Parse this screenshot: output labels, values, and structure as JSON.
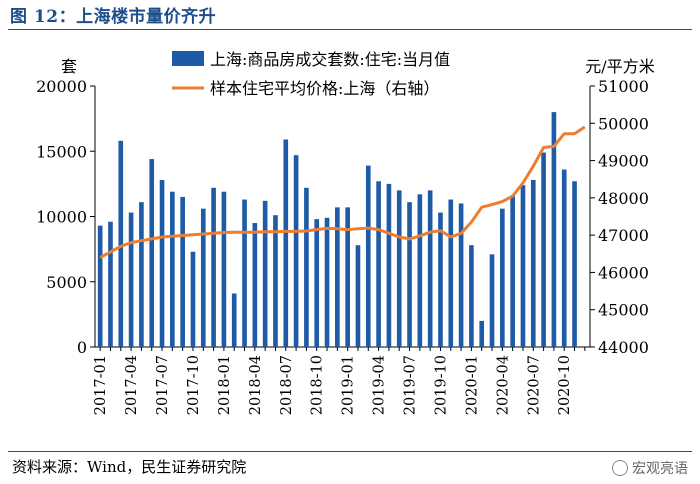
{
  "figure": {
    "title": "图 12：上海楼市量价齐升",
    "source": "资料来源：Wind，民生证券研究院",
    "watermark": "宏观亮语"
  },
  "chart_data": {
    "type": "bar+line",
    "left_unit": "套",
    "right_unit": "元/平方米",
    "left_ylim": [
      0,
      20000
    ],
    "left_ticks": [
      0,
      5000,
      10000,
      15000,
      20000
    ],
    "right_ylim": [
      44000,
      51000
    ],
    "right_ticks": [
      44000,
      45000,
      46000,
      47000,
      48000,
      49000,
      50000,
      51000
    ],
    "x_tick_labels": [
      "2017-01",
      "2017-04",
      "2017-07",
      "2017-10",
      "2018-01",
      "2018-04",
      "2018-07",
      "2018-10",
      "2019-01",
      "2019-04",
      "2019-07",
      "2019-10",
      "2020-01",
      "2020-04",
      "2020-07",
      "2020-10"
    ],
    "x": [
      "2017-01",
      "2017-02",
      "2017-03",
      "2017-04",
      "2017-05",
      "2017-06",
      "2017-07",
      "2017-08",
      "2017-09",
      "2017-10",
      "2017-11",
      "2017-12",
      "2018-01",
      "2018-02",
      "2018-03",
      "2018-04",
      "2018-05",
      "2018-06",
      "2018-07",
      "2018-08",
      "2018-09",
      "2018-10",
      "2018-11",
      "2018-12",
      "2019-01",
      "2019-02",
      "2019-03",
      "2019-04",
      "2019-05",
      "2019-06",
      "2019-07",
      "2019-08",
      "2019-09",
      "2019-10",
      "2019-11",
      "2019-12",
      "2020-01",
      "2020-02",
      "2020-03",
      "2020-04",
      "2020-05",
      "2020-06",
      "2020-07",
      "2020-08",
      "2020-09",
      "2020-10",
      "2020-11",
      "2020-12"
    ],
    "legend_placement": "top",
    "series": [
      {
        "name": "上海:商品房成交套数:住宅:当月值",
        "type": "bar",
        "axis": "left",
        "color": "#1f5aa6",
        "values": [
          9300,
          9600,
          15800,
          10300,
          11100,
          14400,
          12800,
          11900,
          11500,
          7300,
          10600,
          12200,
          11900,
          4100,
          11300,
          9500,
          11200,
          10100,
          15900,
          14700,
          12200,
          9800,
          9900,
          10700,
          10700,
          7800,
          13900,
          12700,
          12500,
          12000,
          11100,
          11700,
          12000,
          10300,
          11300,
          11000,
          7800,
          2000,
          7100,
          10600,
          11600,
          12400,
          12800,
          14900,
          18000,
          13600,
          12700,
          0
        ]
      },
      {
        "name": "样本住宅平均价格:上海（右轴）",
        "type": "line",
        "axis": "right",
        "color": "#ed7d31",
        "values": [
          46400,
          46550,
          46700,
          46800,
          46850,
          46900,
          46950,
          46970,
          46990,
          47010,
          47030,
          47050,
          47070,
          47080,
          47080,
          47080,
          47090,
          47090,
          47100,
          47100,
          47110,
          47150,
          47180,
          47170,
          47150,
          47170,
          47190,
          47150,
          47050,
          46950,
          46900,
          46980,
          47080,
          47120,
          46950,
          47050,
          47350,
          47750,
          47820,
          47900,
          48050,
          48400,
          48850,
          49350,
          49380,
          49720,
          49720,
          49900
        ]
      }
    ]
  }
}
